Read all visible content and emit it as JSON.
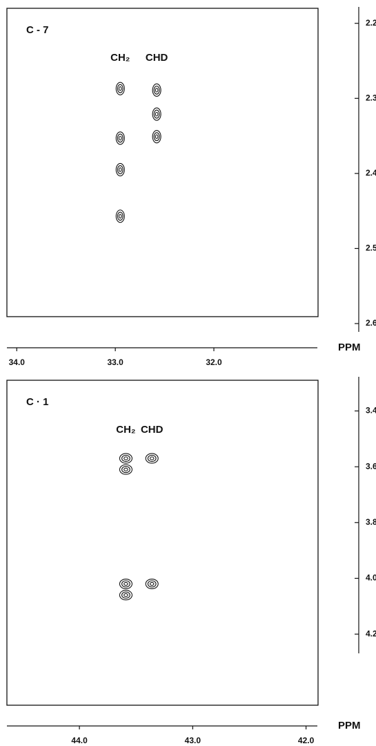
{
  "chart_data": [
    {
      "type": "contour",
      "title": "C - 7",
      "x_label": "PPM",
      "xlim": [
        34.1,
        30.95
      ],
      "xticks": [
        {
          "value": 34,
          "label": "34.0"
        },
        {
          "value": 33,
          "label": "33.0"
        },
        {
          "value": 32,
          "label": "32.0"
        }
      ],
      "ylim": [
        2.18,
        2.6
      ],
      "yticks": [
        2.2,
        2.3,
        2.4,
        2.5,
        2.6
      ],
      "series": [
        {
          "name": "CH₂",
          "color": "#111111",
          "x": [
            32.95,
            32.95,
            32.95,
            32.95
          ],
          "values": [
            2.287,
            2.353,
            2.395,
            2.457
          ]
        },
        {
          "name": "CHD",
          "color": "#111111",
          "x": [
            32.58,
            32.58,
            32.58
          ],
          "values": [
            2.289,
            2.321,
            2.351
          ]
        }
      ]
    },
    {
      "type": "contour",
      "title": "C · 1",
      "x_label": "PPM",
      "xlim": [
        44.64,
        41.9
      ],
      "xticks": [
        {
          "value": 44,
          "label": "44.0"
        },
        {
          "value": 43,
          "label": "43.0"
        },
        {
          "value": 42,
          "label": "42.0"
        }
      ],
      "ylim": [
        3.29,
        4.43
      ],
      "yticks": [
        3.4,
        3.6,
        3.8,
        {
          "value": 4,
          "label": "4.0"
        },
        4.2
      ],
      "series": [
        {
          "name": "CH₂",
          "color": "#111111",
          "x": [
            43.59,
            43.59,
            43.59,
            43.59
          ],
          "values": [
            3.57,
            3.61,
            4.02,
            4.06
          ]
        },
        {
          "name": "CHD",
          "color": "#111111",
          "x": [
            43.36,
            43.36
          ],
          "values": [
            3.57,
            4.02
          ]
        }
      ]
    }
  ]
}
